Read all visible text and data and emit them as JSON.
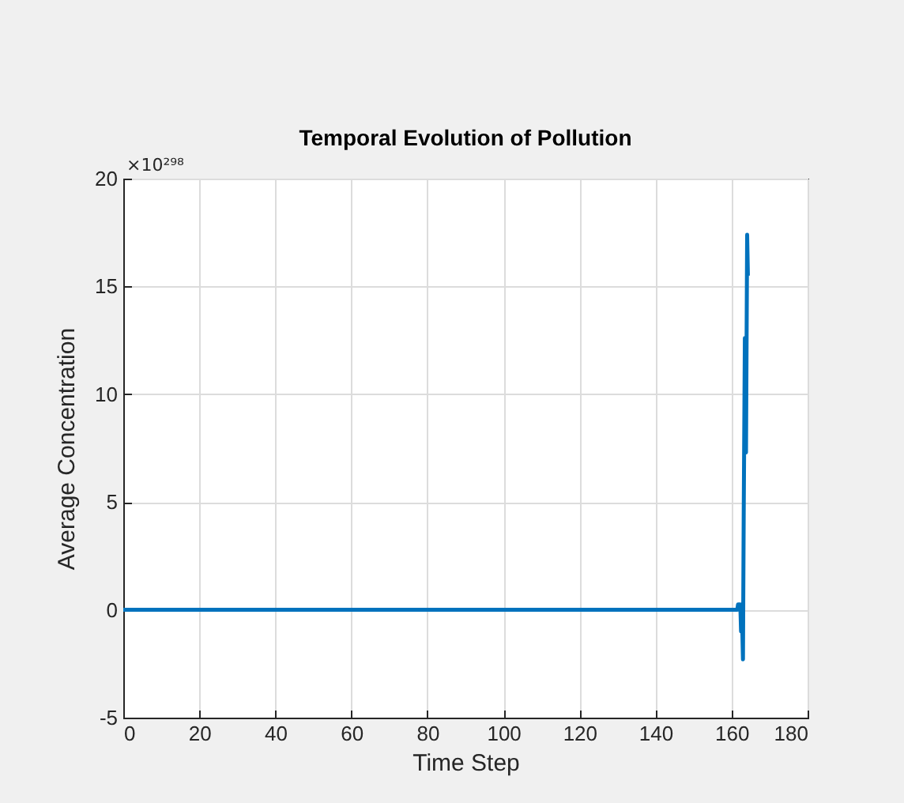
{
  "chart_data": {
    "type": "line",
    "title": "Temporal Evolution of Pollution",
    "xlabel": "Time Step",
    "ylabel": "Average Concentration",
    "annotations": [
      "×10²⁹⁸"
    ],
    "x": [
      0,
      161.5,
      161.7,
      162.3,
      162.5,
      162.7,
      163.0,
      163.2,
      163.5,
      163.8,
      164.1,
      164.3
    ],
    "series": [
      {
        "color": "#0072bd",
        "values": [
          0,
          0,
          0.25,
          0.25,
          -1.0,
          0.1,
          -2.3,
          4.5,
          12.6,
          7.3,
          17.4,
          15.5
        ]
      }
    ],
    "xlim": [
      0,
      180
    ],
    "xticks": [
      0,
      20,
      40,
      60,
      80,
      100,
      120,
      140,
      160,
      180
    ],
    "ylim": [
      -5,
      20
    ],
    "yticks": [
      -5,
      0,
      5,
      10,
      15,
      20
    ],
    "grid": true
  }
}
